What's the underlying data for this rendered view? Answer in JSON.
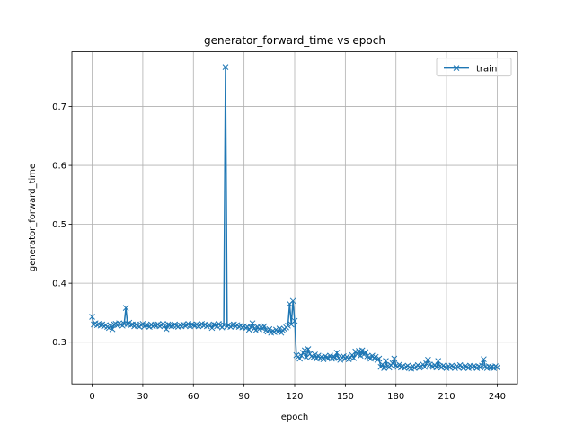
{
  "chart_data": {
    "type": "line",
    "title": "generator_forward_time vs epoch",
    "x_label": "epoch",
    "y_label": "generator_forward_time",
    "x": [
      0,
      1,
      2,
      3,
      4,
      5,
      6,
      7,
      8,
      9,
      10,
      11,
      12,
      13,
      14,
      15,
      16,
      17,
      18,
      19,
      20,
      21,
      22,
      23,
      24,
      25,
      26,
      27,
      28,
      29,
      30,
      31,
      32,
      33,
      34,
      35,
      36,
      37,
      38,
      39,
      40,
      41,
      42,
      43,
      44,
      45,
      46,
      47,
      48,
      49,
      50,
      51,
      52,
      53,
      54,
      55,
      56,
      57,
      58,
      59,
      60,
      61,
      62,
      63,
      64,
      65,
      66,
      67,
      68,
      69,
      70,
      71,
      72,
      73,
      74,
      75,
      76,
      77,
      78,
      79,
      80,
      81,
      82,
      83,
      84,
      85,
      86,
      87,
      88,
      89,
      90,
      91,
      92,
      93,
      94,
      95,
      96,
      97,
      98,
      99,
      100,
      101,
      102,
      103,
      104,
      105,
      106,
      107,
      108,
      109,
      110,
      111,
      112,
      113,
      114,
      115,
      116,
      117,
      118,
      119,
      120,
      121,
      122,
      123,
      124,
      125,
      126,
      127,
      128,
      129,
      130,
      131,
      132,
      133,
      134,
      135,
      136,
      137,
      138,
      139,
      140,
      141,
      142,
      143,
      144,
      145,
      146,
      147,
      148,
      149,
      150,
      151,
      152,
      153,
      154,
      155,
      156,
      157,
      158,
      159,
      160,
      161,
      162,
      163,
      164,
      165,
      166,
      167,
      168,
      169,
      170,
      171,
      172,
      173,
      174,
      175,
      176,
      177,
      178,
      179,
      180,
      181,
      182,
      183,
      184,
      185,
      186,
      187,
      188,
      189,
      190,
      191,
      192,
      193,
      194,
      195,
      196,
      197,
      198,
      199,
      200,
      201,
      202,
      203,
      204,
      205,
      206,
      207,
      208,
      209,
      210,
      211,
      212,
      213,
      214,
      215,
      216,
      217,
      218,
      219,
      220,
      221,
      222,
      223,
      224,
      225,
      226,
      227,
      228,
      229,
      230,
      231,
      232,
      233,
      234,
      235,
      236,
      237,
      238,
      239,
      240
    ],
    "series": [
      {
        "name": "train",
        "color": "#1f77b4",
        "marker": "x",
        "values": [
          0.343,
          0.33,
          0.332,
          0.329,
          0.331,
          0.328,
          0.33,
          0.327,
          0.329,
          0.326,
          0.324,
          0.328,
          0.322,
          0.33,
          0.331,
          0.329,
          0.332,
          0.33,
          0.328,
          0.331,
          0.358,
          0.331,
          0.333,
          0.329,
          0.33,
          0.327,
          0.33,
          0.328,
          0.326,
          0.329,
          0.331,
          0.327,
          0.329,
          0.328,
          0.326,
          0.33,
          0.327,
          0.329,
          0.328,
          0.33,
          0.327,
          0.329,
          0.331,
          0.328,
          0.322,
          0.33,
          0.329,
          0.327,
          0.328,
          0.33,
          0.328,
          0.326,
          0.329,
          0.327,
          0.33,
          0.328,
          0.329,
          0.331,
          0.327,
          0.33,
          0.329,
          0.328,
          0.33,
          0.327,
          0.329,
          0.331,
          0.328,
          0.33,
          0.327,
          0.329,
          0.328,
          0.324,
          0.33,
          0.329,
          0.327,
          0.331,
          0.328,
          0.325,
          0.329,
          0.767,
          0.327,
          0.329,
          0.326,
          0.328,
          0.33,
          0.327,
          0.329,
          0.326,
          0.328,
          0.325,
          0.327,
          0.324,
          0.326,
          0.321,
          0.325,
          0.332,
          0.323,
          0.32,
          0.326,
          0.322,
          0.325,
          0.323,
          0.327,
          0.32,
          0.318,
          0.322,
          0.316,
          0.319,
          0.317,
          0.321,
          0.318,
          0.323,
          0.316,
          0.32,
          0.322,
          0.325,
          0.328,
          0.365,
          0.33,
          0.37,
          0.336,
          0.278,
          0.275,
          0.272,
          0.277,
          0.282,
          0.286,
          0.274,
          0.288,
          0.28,
          0.276,
          0.274,
          0.279,
          0.272,
          0.277,
          0.273,
          0.275,
          0.271,
          0.276,
          0.274,
          0.273,
          0.277,
          0.272,
          0.275,
          0.274,
          0.282,
          0.273,
          0.27,
          0.274,
          0.276,
          0.272,
          0.275,
          0.271,
          0.274,
          0.278,
          0.273,
          0.284,
          0.28,
          0.285,
          0.277,
          0.286,
          0.279,
          0.283,
          0.276,
          0.274,
          0.272,
          0.277,
          0.273,
          0.275,
          0.27,
          0.272,
          0.258,
          0.262,
          0.256,
          0.268,
          0.259,
          0.257,
          0.261,
          0.264,
          0.272,
          0.26,
          0.258,
          0.262,
          0.257,
          0.259,
          0.256,
          0.258,
          0.26,
          0.257,
          0.255,
          0.259,
          0.256,
          0.258,
          0.261,
          0.257,
          0.259,
          0.262,
          0.258,
          0.264,
          0.27,
          0.262,
          0.259,
          0.258,
          0.261,
          0.257,
          0.268,
          0.259,
          0.257,
          0.26,
          0.258,
          0.256,
          0.259,
          0.257,
          0.26,
          0.258,
          0.256,
          0.259,
          0.257,
          0.261,
          0.258,
          0.256,
          0.259,
          0.258,
          0.256,
          0.26,
          0.257,
          0.259,
          0.258,
          0.256,
          0.259,
          0.257,
          0.26,
          0.271,
          0.258,
          0.256,
          0.259,
          0.257,
          0.258,
          0.256,
          0.259,
          0.257
        ]
      }
    ],
    "xlim": [
      -12,
      252
    ],
    "ylim": [
      0.229,
      0.793
    ],
    "xticks": [
      0,
      30,
      60,
      90,
      120,
      150,
      180,
      210,
      240
    ],
    "yticks": [
      0.3,
      0.4,
      0.5,
      0.6,
      0.7
    ],
    "grid": true,
    "legend": "upper right"
  }
}
